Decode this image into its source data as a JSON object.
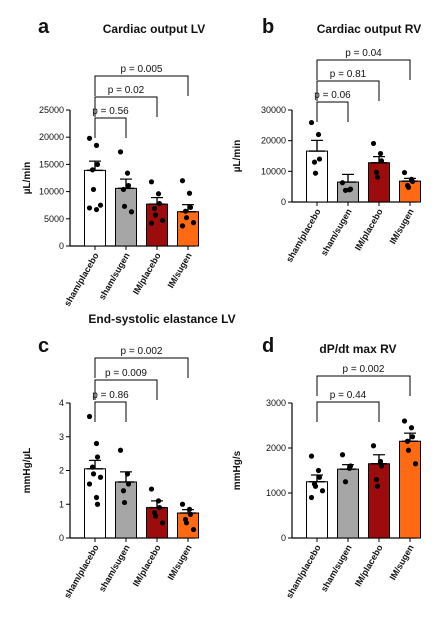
{
  "chart_data": [
    {
      "type": "bar",
      "panel": "a",
      "title": "Cardiac output LV",
      "ylabel": "µL/min",
      "ylim": [
        0,
        25000
      ],
      "yticks": [
        "0",
        "5000",
        "10000",
        "15000",
        "20000",
        "25000"
      ],
      "categories": [
        "sham/placebo",
        "sham/sugen",
        "IM/placebo",
        "IM/sugen"
      ],
      "colors": [
        "#ffffff",
        "#a6a6a6",
        "#9c0c0c",
        "#ff6a13"
      ],
      "values": [
        13900,
        10600,
        7700,
        6300
      ],
      "errors": [
        1700,
        1700,
        1200,
        1300
      ],
      "points": [
        [
          19800,
          18500,
          15000,
          14000,
          10400,
          7500,
          7000,
          6700
        ],
        [
          17300,
          13400,
          11100,
          10400,
          7300,
          6300
        ],
        [
          11800,
          9600,
          7800,
          6900,
          5700,
          4700,
          4200
        ],
        [
          12000,
          9700,
          7100,
          6400,
          5200,
          4300,
          3700
        ]
      ],
      "comparisons": [
        {
          "from": 0,
          "to": 1,
          "label": "p = 0.56"
        },
        {
          "from": 0,
          "to": 2,
          "label": "p = 0.02"
        },
        {
          "from": 0,
          "to": 3,
          "label": "p = 0.005"
        }
      ]
    },
    {
      "type": "bar",
      "panel": "b",
      "title": "Cardiac output RV",
      "ylabel": "µL/min",
      "ylim": [
        0,
        30000
      ],
      "yticks": [
        "0",
        "10000",
        "20000",
        "30000"
      ],
      "categories": [
        "sham/placebo",
        "sham/sugen",
        "IM/placebo",
        "IM/sugen"
      ],
      "colors": [
        "#ffffff",
        "#a6a6a6",
        "#9c0c0c",
        "#ff6a13"
      ],
      "values": [
        16600,
        6500,
        12800,
        6800
      ],
      "errors": [
        3500,
        2500,
        2000,
        900
      ],
      "points": [
        [
          25900,
          22000,
          14000,
          13000,
          9400
        ],
        [
          6300,
          4000,
          4200,
          3800
        ],
        [
          19100,
          15800,
          13400,
          9700,
          8100
        ],
        [
          9600,
          7400,
          6700,
          5400,
          4800
        ]
      ],
      "comparisons": [
        {
          "from": 0,
          "to": 1,
          "label": "p = 0.06"
        },
        {
          "from": 0,
          "to": 2,
          "label": "p = 0.81"
        },
        {
          "from": 0,
          "to": 3,
          "label": "p = 0.04"
        }
      ]
    },
    {
      "type": "bar",
      "panel": "c",
      "title": "End-systolic elastance LV",
      "ylabel": "mmHg/µL",
      "ylim": [
        0,
        4
      ],
      "yticks": [
        "0",
        "1",
        "2",
        "3",
        "4"
      ],
      "categories": [
        "sham/placebo",
        "sham/sugen",
        "IM/placebo",
        "IM/sugen"
      ],
      "colors": [
        "#ffffff",
        "#a6a6a6",
        "#9c0c0c",
        "#ff6a13"
      ],
      "values": [
        2.05,
        1.66,
        0.9,
        0.74
      ],
      "errors": [
        0.25,
        0.3,
        0.2,
        0.1
      ],
      "points": [
        [
          3.6,
          2.8,
          2.4,
          2.1,
          1.9,
          1.8,
          1.6,
          1.2,
          1.0
        ],
        [
          2.6,
          1.9,
          1.6,
          1.4,
          1.05
        ],
        [
          1.45,
          1.1,
          0.9,
          0.75,
          0.65,
          0.45
        ],
        [
          1.0,
          0.85,
          0.7,
          0.55,
          0.45,
          0.25
        ]
      ],
      "comparisons": [
        {
          "from": 0,
          "to": 1,
          "label": "p = 0.86"
        },
        {
          "from": 0,
          "to": 2,
          "label": "p = 0.009"
        },
        {
          "from": 0,
          "to": 3,
          "label": "p = 0.002"
        }
      ]
    },
    {
      "type": "bar",
      "panel": "d",
      "title": "dP/dt max RV",
      "ylabel": "mmHg/s",
      "ylim": [
        0,
        3000
      ],
      "yticks": [
        "0",
        "1000",
        "2000",
        "3000"
      ],
      "categories": [
        "sham/placebo",
        "sham/sugen",
        "IM/placebo",
        "IM/sugen"
      ],
      "colors": [
        "#ffffff",
        "#a6a6a6",
        "#9c0c0c",
        "#ff6a13"
      ],
      "values": [
        1250,
        1530,
        1650,
        2150
      ],
      "errors": [
        150,
        100,
        200,
        180
      ],
      "points": [
        [
          1820,
          1500,
          1350,
          1200,
          1150,
          1050,
          900
        ],
        [
          1850,
          1550,
          1600,
          1250
        ],
        [
          2050,
          1700,
          1600,
          1300,
          1150
        ],
        [
          2600,
          2450,
          2250,
          2150,
          1950,
          1650
        ]
      ],
      "comparisons": [
        {
          "from": 0,
          "to": 2,
          "label": "p = 0.44"
        },
        {
          "from": 0,
          "to": 3,
          "label": "p = 0.002"
        }
      ]
    }
  ]
}
